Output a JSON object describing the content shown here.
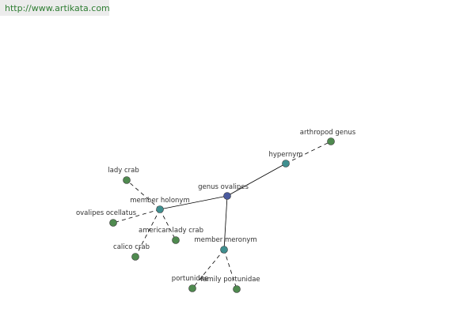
{
  "header": {
    "url": "http://www.artikata.com"
  },
  "nodes": [
    {
      "label": "genus ovalipes"
    },
    {
      "label": "hypernym"
    },
    {
      "label": "arthropod genus"
    },
    {
      "label": "member holonym"
    },
    {
      "label": "lady crab"
    },
    {
      "label": "ovalipes ocellatus"
    },
    {
      "label": "american lady crab"
    },
    {
      "label": "calico crab"
    },
    {
      "label": "member meronym"
    },
    {
      "label": "portunidae"
    },
    {
      "label": "family portunidae"
    }
  ]
}
